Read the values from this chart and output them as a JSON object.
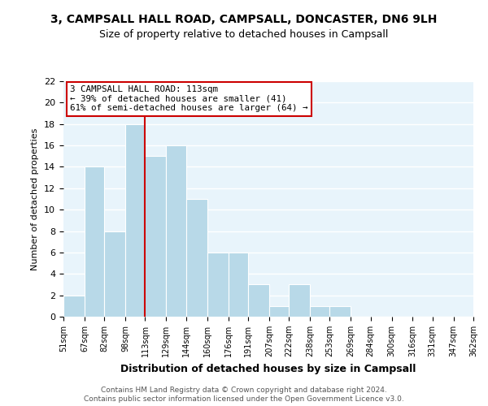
{
  "title": "3, CAMPSALL HALL ROAD, CAMPSALL, DONCASTER, DN6 9LH",
  "subtitle": "Size of property relative to detached houses in Campsall",
  "xlabel": "Distribution of detached houses by size in Campsall",
  "ylabel": "Number of detached properties",
  "bar_edges": [
    51,
    67,
    82,
    98,
    113,
    129,
    144,
    160,
    176,
    191,
    207,
    222,
    238,
    253,
    269,
    284,
    300,
    316,
    331,
    347,
    362
  ],
  "bar_heights": [
    2,
    14,
    8,
    18,
    15,
    16,
    11,
    6,
    6,
    3,
    1,
    3,
    1,
    1,
    0,
    0,
    0,
    0,
    0,
    0
  ],
  "bar_color": "#b8d9e8",
  "bar_edge_color": "#ffffff",
  "vline_x": 113,
  "vline_color": "#cc0000",
  "annotation_title": "3 CAMPSALL HALL ROAD: 113sqm",
  "annotation_line1": "← 39% of detached houses are smaller (41)",
  "annotation_line2": "61% of semi-detached houses are larger (64) →",
  "annotation_box_facecolor": "#ffffff",
  "annotation_box_edgecolor": "#cc0000",
  "ylim": [
    0,
    22
  ],
  "tick_labels": [
    "51sqm",
    "67sqm",
    "82sqm",
    "98sqm",
    "113sqm",
    "129sqm",
    "144sqm",
    "160sqm",
    "176sqm",
    "191sqm",
    "207sqm",
    "222sqm",
    "238sqm",
    "253sqm",
    "269sqm",
    "284sqm",
    "300sqm",
    "316sqm",
    "331sqm",
    "347sqm",
    "362sqm"
  ],
  "footer_line1": "Contains HM Land Registry data © Crown copyright and database right 2024.",
  "footer_line2": "Contains public sector information licensed under the Open Government Licence v3.0.",
  "fig_background": "#ffffff",
  "plot_background": "#e8f4fb",
  "grid_color": "#ffffff",
  "title_fontsize": 10,
  "subtitle_fontsize": 9,
  "ytick_interval": 2,
  "ymax": 22
}
